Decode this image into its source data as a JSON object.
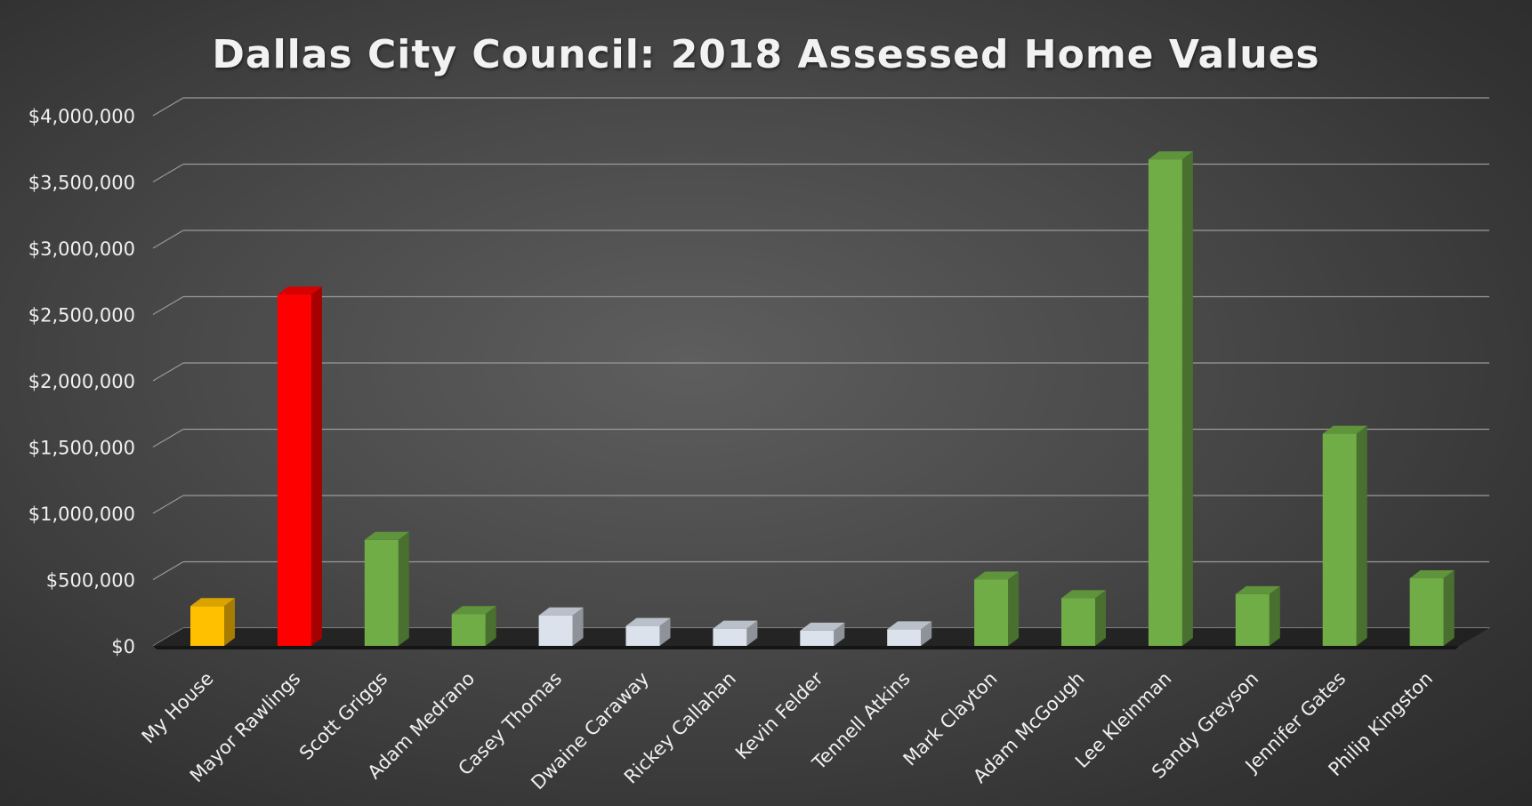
{
  "chart_data": {
    "type": "bar",
    "title": "Dallas City Council: 2018 Assessed Home Values",
    "xlabel": "",
    "ylabel": "",
    "ylim": [
      0,
      4000000
    ],
    "yticks": [
      "$0",
      "$500,000",
      "$1,000,000",
      "$1,500,000",
      "$2,000,000",
      "$2,500,000",
      "$3,000,000",
      "$3,500,000",
      "$4,000,000"
    ],
    "categories": [
      "My House",
      "Mayor Rawlings",
      "Scott Griggs",
      "Adam Medrano",
      "Casey Thomas",
      "Dwaine Caraway",
      "Rickey Callahan",
      "Kevin Felder",
      "Tennell Atkins",
      "Mark Clayton",
      "Adam McGough",
      "Lee Kleinman",
      "Sandy Greyson",
      "Jennifer Gates",
      "Philip Kingston"
    ],
    "values": [
      300000,
      2650000,
      800000,
      240000,
      230000,
      150000,
      130000,
      115000,
      125000,
      500000,
      360000,
      3670000,
      390000,
      1600000,
      510000
    ],
    "colors": [
      "#ffc000",
      "#ff0000",
      "#70ad47",
      "#70ad47",
      "#dbe2ec",
      "#dbe2ec",
      "#dbe2ec",
      "#dbe2ec",
      "#dbe2ec",
      "#70ad47",
      "#70ad47",
      "#70ad47",
      "#70ad47",
      "#70ad47",
      "#70ad47"
    ],
    "grid": true,
    "legend": "none"
  }
}
